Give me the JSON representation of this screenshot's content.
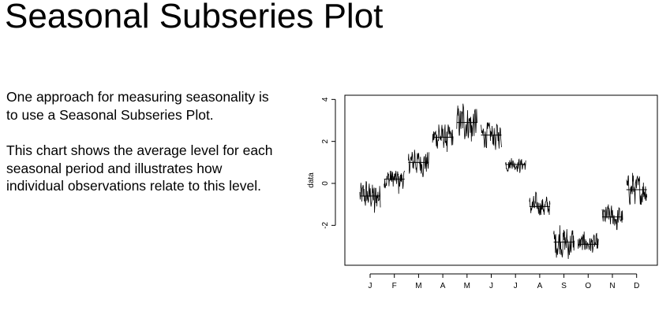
{
  "slide": {
    "title": "Seasonal Subseries Plot",
    "paragraphs": [
      "One approach for measuring seasonality is to use a Seasonal Subseries Plot.",
      "This chart shows the average level for each seasonal period and illustrates how individual observations relate to this level."
    ]
  },
  "chart_data": {
    "type": "line",
    "subtype": "seasonal-subseries",
    "title": "",
    "xlabel": "",
    "ylabel": "data",
    "ylim": [
      -3.9,
      4.2
    ],
    "yticks": [
      -2,
      0,
      2,
      4
    ],
    "categories": [
      "J",
      "F",
      "M",
      "A",
      "M",
      "J",
      "J",
      "A",
      "S",
      "O",
      "N",
      "D"
    ],
    "category_means": [
      -0.6,
      0.2,
      1.0,
      2.2,
      2.9,
      2.3,
      0.9,
      -1.1,
      -2.8,
      -2.9,
      -1.6,
      -0.3
    ],
    "category_min": [
      -1.4,
      -0.5,
      0.3,
      1.5,
      2.0,
      1.6,
      0.5,
      -1.5,
      -3.6,
      -3.3,
      -2.2,
      -1.0
    ],
    "category_max": [
      0.1,
      0.6,
      1.6,
      2.8,
      3.8,
      2.9,
      1.2,
      -0.4,
      -2.0,
      -2.3,
      -1.0,
      0.5
    ],
    "grid": false,
    "line_color": "#000000"
  }
}
